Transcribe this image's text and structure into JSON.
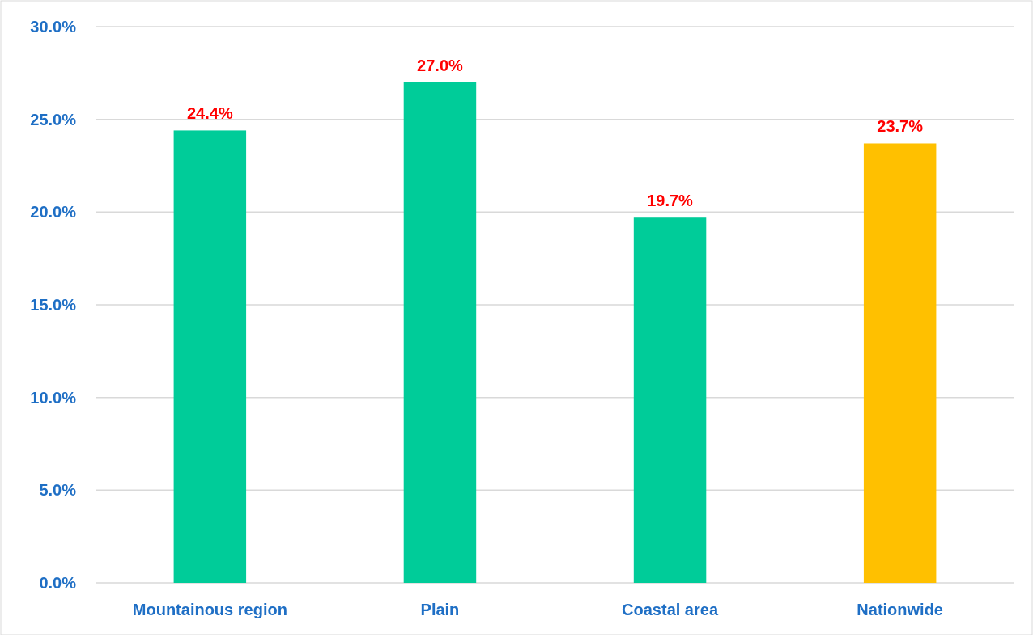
{
  "chart_data": {
    "type": "bar",
    "categories": [
      "Mountainous region",
      "Plain",
      "Coastal area",
      "Nationwide"
    ],
    "values": [
      24.4,
      27.0,
      19.7,
      23.7
    ],
    "colors": [
      "#00cc99",
      "#00cc99",
      "#00cc99",
      "#ffc000"
    ],
    "value_labels": [
      "24.4%",
      "27.0%",
      "19.7%",
      "23.7%"
    ],
    "ylim": [
      0,
      30
    ],
    "yticks": [
      {
        "value": 0,
        "label": "0.0%"
      },
      {
        "value": 5,
        "label": "5.0%"
      },
      {
        "value": 10,
        "label": "10.0%"
      },
      {
        "value": 15,
        "label": "15.0%"
      },
      {
        "value": 20,
        "label": "20.0%"
      },
      {
        "value": 25,
        "label": "25.0%"
      },
      {
        "value": 30,
        "label": "30.0%"
      }
    ],
    "grid": "y"
  }
}
